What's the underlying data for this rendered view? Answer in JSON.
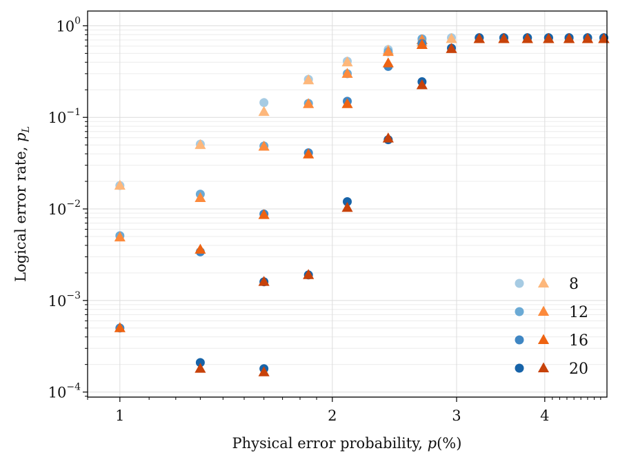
{
  "chart_data": {
    "type": "scatter",
    "xscale": "log",
    "yscale": "log",
    "xlim": [
      0.9,
      4.9
    ],
    "ylim": [
      8.8e-05,
      1.45
    ],
    "xlabel": "Physical error probability, p(%)",
    "ylabel": "Logical error rate, p_L",
    "xlabel_parts": {
      "pre": "Physical error probability, ",
      "p": "p",
      "mid": "(",
      "pct": "%",
      "post": ")"
    },
    "ylabel_parts": {
      "pre": "Logical error rate, ",
      "p": "p",
      "sub": "L"
    },
    "xticks": [
      {
        "v": 1,
        "label": "1"
      },
      {
        "v": 2,
        "label": "2"
      },
      {
        "v": 3,
        "label": "3"
      },
      {
        "v": 4,
        "label": "4"
      }
    ],
    "yticks": [
      {
        "v": 0.0001,
        "base": "10",
        "exp": "−4"
      },
      {
        "v": 0.001,
        "base": "10",
        "exp": "−3"
      },
      {
        "v": 0.01,
        "base": "10",
        "exp": "−2"
      },
      {
        "v": 0.1,
        "base": "10",
        "exp": "−1"
      },
      {
        "v": 1,
        "base": "10",
        "exp": "0"
      }
    ],
    "grid": true,
    "legend": {
      "position": "lower-right",
      "entries": [
        "8",
        "12",
        "16",
        "20"
      ]
    },
    "x": [
      1.0,
      1.3,
      1.6,
      1.85,
      2.1,
      2.4,
      2.68,
      2.95,
      3.23,
      3.5,
      3.78,
      4.05,
      4.33,
      4.6,
      4.85
    ],
    "series": [
      {
        "name": "8",
        "circle_color": "#a6cbe3",
        "triangle_color": "#fdb77b",
        "groups": [
          {
            "circle": [
              0.018,
              0.051,
              0.145,
              0.26,
              0.41,
              0.55,
              0.67,
              0.74,
              0.74,
              0.74,
              0.74,
              0.74,
              0.74,
              0.74,
              0.74
            ],
            "triangle": [
              0.018,
              0.05,
              0.115,
              0.255,
              0.4,
              0.54,
              0.66,
              0.72,
              0.72,
              0.72,
              0.72,
              0.72,
              0.72,
              0.72,
              0.72
            ]
          }
        ]
      },
      {
        "name": "12",
        "circle_color": "#6baad5",
        "triangle_color": "#fc8a3c",
        "groups": [
          {
            "circle": [
              0.0051,
              0.0145,
              0.0487,
              0.142,
              0.3,
              0.52,
              0.72
            ],
            "triangle": [
              0.0049,
              0.0132,
              0.048,
              0.14,
              0.3,
              0.52,
              0.7
            ],
            "start": 0
          },
          {
            "circle": [
              0.74,
              0.74,
              0.74,
              0.74,
              0.74,
              0.74,
              0.74
            ],
            "triangle": [
              0.72,
              0.72,
              0.72,
              0.72,
              0.72,
              0.72,
              0.72
            ],
            "start": 8
          }
        ]
      },
      {
        "name": "16",
        "circle_color": "#3f86c3",
        "triangle_color": "#ee6312",
        "groups": [
          {
            "circle": [
              0.0005,
              0.0034,
              0.0088,
              0.041,
              0.15,
              0.36,
              0.64
            ],
            "triangle": [
              0.0005,
              0.0036,
              0.0086,
              0.0395,
              0.14,
              0.39,
              0.62
            ],
            "start": 0
          },
          {
            "circle": [
              0.74,
              0.74,
              0.74,
              0.74,
              0.74,
              0.74,
              0.74
            ],
            "triangle": [
              0.72,
              0.72,
              0.72,
              0.72,
              0.72,
              0.72,
              0.72
            ],
            "start": 8
          }
        ]
      },
      {
        "name": "20",
        "circle_color": "#1763a8",
        "triangle_color": "#c7420a",
        "groups": [
          {
            "circle": [
              0.00021,
              0.0016,
              0.0019,
              0.012,
              0.057,
              0.245,
              0.57
            ],
            "triangle": [
              0.00018,
              0.0016,
              0.0019,
              0.0103,
              0.059,
              0.225,
              0.56
            ],
            "start": 1
          },
          {
            "circle": [
              0.00018
            ],
            "triangle": [
              0.000165
            ],
            "start": 2
          },
          {
            "circle": [
              0.74,
              0.74,
              0.74,
              0.74,
              0.74,
              0.74,
              0.74
            ],
            "triangle": [
              0.72,
              0.72,
              0.72,
              0.72,
              0.72,
              0.72,
              0.72
            ],
            "start": 8
          }
        ]
      }
    ]
  }
}
